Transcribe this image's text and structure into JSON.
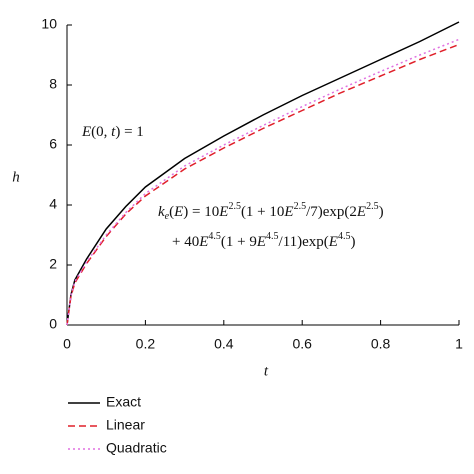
{
  "chart_data": {
    "type": "line",
    "x_label": "t",
    "y_label": "h",
    "x": [
      0,
      0.01,
      0.02,
      0.05,
      0.1,
      0.15,
      0.2,
      0.3,
      0.4,
      0.5,
      0.6,
      0.7,
      0.8,
      0.9,
      1
    ],
    "series": [
      {
        "name": "Exact",
        "color": "#000000",
        "dash": "solid",
        "values": [
          0,
          1.0,
          1.5,
          2.2,
          3.2,
          3.95,
          4.6,
          5.55,
          6.3,
          7.0,
          7.65,
          8.25,
          8.85,
          9.45,
          10.1
        ]
      },
      {
        "name": "Linear",
        "color": "#e0202a",
        "dash": "dashed",
        "values": [
          0,
          0.95,
          1.4,
          2.05,
          2.95,
          3.7,
          4.3,
          5.2,
          5.9,
          6.55,
          7.15,
          7.75,
          8.3,
          8.85,
          9.35
        ]
      },
      {
        "name": "Quadratic",
        "color": "#e070e0",
        "dash": "dotted",
        "values": [
          0,
          0.97,
          1.45,
          2.1,
          3.0,
          3.75,
          4.38,
          5.3,
          6.0,
          6.65,
          7.28,
          7.88,
          8.45,
          9.0,
          9.52
        ]
      }
    ],
    "xlim": [
      0,
      1
    ],
    "xticks": [
      0,
      0.2,
      0.4,
      0.6,
      0.8,
      1
    ],
    "ylim": [
      0,
      10
    ],
    "yticks": [
      0,
      2,
      4,
      6,
      8,
      10
    ],
    "annotations": [
      [
        {
          "text": "E",
          "style": "italic"
        },
        {
          "text": "(0, "
        },
        {
          "text": "t",
          "style": "italic"
        },
        {
          "text": ") = 1"
        }
      ],
      [
        {
          "text": "k",
          "style": "italic"
        },
        {
          "text": "e",
          "style": "sub"
        },
        {
          "text": "("
        },
        {
          "text": "E",
          "style": "italic"
        },
        {
          "text": ") = 10"
        },
        {
          "text": "E",
          "style": "italic"
        },
        {
          "text": "2.5",
          "style": "sup"
        },
        {
          "text": "(1 + 10"
        },
        {
          "text": "E",
          "style": "italic"
        },
        {
          "text": "2.5",
          "style": "sup"
        },
        {
          "text": "/7)exp(2"
        },
        {
          "text": "E",
          "style": "italic"
        },
        {
          "text": "2.5",
          "style": "sup"
        },
        {
          "text": ")"
        }
      ],
      [
        {
          "text": "+ 40"
        },
        {
          "text": "E",
          "style": "italic"
        },
        {
          "text": "4.5",
          "style": "sup"
        },
        {
          "text": "(1 + 9"
        },
        {
          "text": "E",
          "style": "italic"
        },
        {
          "text": "4.5",
          "style": "sup"
        },
        {
          "text": "/11)exp("
        },
        {
          "text": "E",
          "style": "italic"
        },
        {
          "text": "4.5",
          "style": "sup"
        },
        {
          "text": ")"
        }
      ]
    ]
  }
}
